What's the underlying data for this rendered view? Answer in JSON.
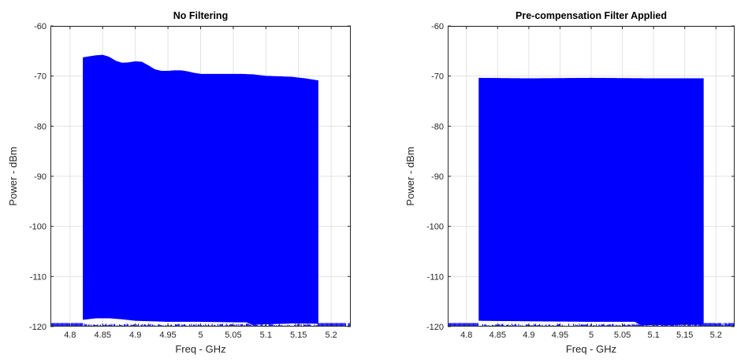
{
  "chart_data": [
    {
      "type": "area",
      "title": "No Filtering",
      "xlabel": "Freq - GHz",
      "ylabel": "Power - dBm",
      "xlim": [
        4.77,
        5.23
      ],
      "ylim": [
        -120,
        -60
      ],
      "xticks": [
        4.8,
        4.85,
        4.9,
        4.95,
        5,
        5.05,
        5.1,
        5.15,
        5.2
      ],
      "xtick_labels": [
        "4.8",
        "4.85",
        "4.9",
        "4.95",
        "5",
        "5.05",
        "5.1",
        "5.15",
        "5.2"
      ],
      "yticks": [
        -120,
        -110,
        -100,
        -90,
        -80,
        -70,
        -60
      ],
      "ytick_labels": [
        "-120",
        "-110",
        "-100",
        "-90",
        "-80",
        "-70",
        "-60"
      ],
      "grid": true,
      "color": "#0000ff",
      "band": {
        "x_start": 4.82,
        "x_end": 5.18
      },
      "upper_envelope": {
        "x": [
          4.82,
          4.83,
          4.84,
          4.85,
          4.86,
          4.87,
          4.88,
          4.89,
          4.9,
          4.91,
          4.92,
          4.93,
          4.94,
          4.95,
          4.96,
          4.97,
          4.98,
          4.99,
          5.0,
          5.02,
          5.04,
          5.06,
          5.08,
          5.1,
          5.12,
          5.14,
          5.16,
          5.18
        ],
        "y": [
          -66.3,
          -66.1,
          -65.9,
          -65.8,
          -66.2,
          -67.0,
          -67.4,
          -67.3,
          -67.1,
          -67.2,
          -67.9,
          -68.7,
          -69.0,
          -69.0,
          -68.9,
          -68.9,
          -69.1,
          -69.4,
          -69.6,
          -69.6,
          -69.6,
          -69.6,
          -69.7,
          -70.0,
          -70.1,
          -70.2,
          -70.5,
          -70.9
        ]
      },
      "lower_envelope": {
        "x": [
          4.82,
          4.84,
          4.86,
          4.88,
          4.9,
          4.95,
          5.0,
          5.05,
          5.07,
          5.08,
          5.1,
          5.15,
          5.18
        ],
        "y": [
          -118.6,
          -118.3,
          -118.3,
          -118.5,
          -118.8,
          -119.0,
          -119.0,
          -119.1,
          -119.1,
          -119.6,
          -119.5,
          -119.3,
          -119.4
        ]
      },
      "left_noise_floor": {
        "x": [
          4.77,
          4.775,
          4.78,
          4.785,
          4.79,
          4.795,
          4.8,
          4.805,
          4.81,
          4.815,
          4.82
        ],
        "y": [
          -112.0,
          -107.5,
          -114.0,
          -110.5,
          -116.0,
          -113.0,
          -118.0,
          -115.5,
          -113.5,
          -110.5,
          -113.0
        ]
      },
      "right_noise_floor": {
        "x": [
          5.18,
          5.185,
          5.19,
          5.195,
          5.2,
          5.205,
          5.21,
          5.215,
          5.22,
          5.225,
          5.23
        ],
        "y": [
          -114.5,
          -113.5,
          -115.5,
          -116.0,
          -117.0,
          -118.0,
          -117.0,
          -118.5,
          -119.0,
          -119.5,
          -119.5
        ]
      }
    },
    {
      "type": "area",
      "title": "Pre-compensation Filter Applied",
      "xlabel": "Freq - GHz",
      "ylabel": "Power - dBm",
      "xlim": [
        4.77,
        5.23
      ],
      "ylim": [
        -120,
        -60
      ],
      "xticks": [
        4.8,
        4.85,
        4.9,
        4.95,
        5,
        5.05,
        5.1,
        5.15,
        5.2
      ],
      "xtick_labels": [
        "4.8",
        "4.85",
        "4.9",
        "4.95",
        "5",
        "5.05",
        "5.1",
        "5.15",
        "5.2"
      ],
      "yticks": [
        -120,
        -110,
        -100,
        -90,
        -80,
        -70,
        -60
      ],
      "ytick_labels": [
        "-120",
        "-110",
        "-100",
        "-90",
        "-80",
        "-70",
        "-60"
      ],
      "grid": true,
      "color": "#0000ff",
      "band": {
        "x_start": 4.82,
        "x_end": 5.18
      },
      "upper_envelope": {
        "x": [
          4.82,
          4.9,
          5.0,
          5.1,
          5.18
        ],
        "y": [
          -70.4,
          -70.5,
          -70.4,
          -70.5,
          -70.5
        ]
      },
      "lower_envelope": {
        "x": [
          4.82,
          4.9,
          5.0,
          5.07,
          5.08,
          5.15,
          5.18
        ],
        "y": [
          -118.8,
          -118.9,
          -119.0,
          -119.0,
          -119.7,
          -119.6,
          -119.6
        ]
      },
      "left_noise_floor": {
        "x": [
          4.77,
          4.775,
          4.78,
          4.785,
          4.79,
          4.795,
          4.8,
          4.805,
          4.81,
          4.815,
          4.82
        ],
        "y": [
          -116.0,
          -111.5,
          -116.0,
          -110.0,
          -115.0,
          -111.5,
          -117.0,
          -114.0,
          -116.5,
          -113.0,
          -116.0
        ]
      },
      "right_noise_floor": {
        "x": [
          5.18,
          5.185,
          5.19,
          5.195,
          5.2,
          5.205,
          5.21,
          5.215,
          5.22,
          5.225,
          5.23
        ],
        "y": [
          -115.0,
          -116.5,
          -118.0,
          -117.5,
          -119.0,
          -118.0,
          -119.5,
          -118.5,
          -119.5,
          -119.5,
          -119.8
        ]
      }
    }
  ]
}
